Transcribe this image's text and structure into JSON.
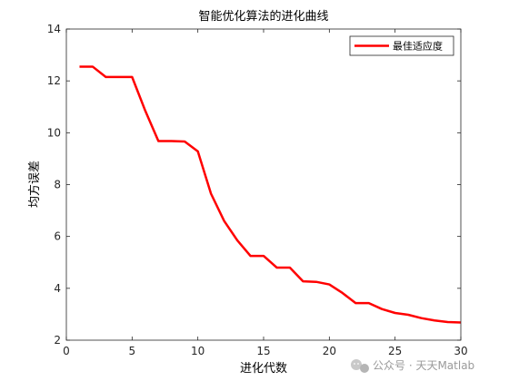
{
  "chart_data": {
    "type": "line",
    "title": "智能优化算法的进化曲线",
    "xlabel": "进化代数",
    "ylabel": "均方误差",
    "xlim": [
      0,
      30
    ],
    "ylim": [
      2,
      14
    ],
    "xticks": [
      0,
      5,
      10,
      15,
      20,
      25,
      30
    ],
    "yticks": [
      2,
      4,
      6,
      8,
      10,
      12,
      14
    ],
    "grid": false,
    "legend_position": "top-right",
    "series": [
      {
        "name": "最佳适应度",
        "color": "#ff0000",
        "x": [
          1,
          2,
          3,
          4,
          5,
          6,
          7,
          8,
          9,
          10,
          11,
          12,
          13,
          14,
          15,
          16,
          17,
          18,
          19,
          20,
          21,
          22,
          23,
          24,
          25,
          26,
          27,
          28,
          29,
          30
        ],
        "y": [
          12.55,
          12.55,
          12.15,
          12.15,
          12.15,
          10.85,
          9.68,
          9.68,
          9.66,
          9.28,
          7.65,
          6.6,
          5.85,
          5.25,
          5.25,
          4.8,
          4.8,
          4.27,
          4.25,
          4.15,
          3.82,
          3.43,
          3.43,
          3.2,
          3.05,
          2.98,
          2.85,
          2.76,
          2.7,
          2.68
        ]
      }
    ]
  },
  "watermark": {
    "text": "公众号 · 天天Matlab",
    "icon": "wechat-icon"
  }
}
